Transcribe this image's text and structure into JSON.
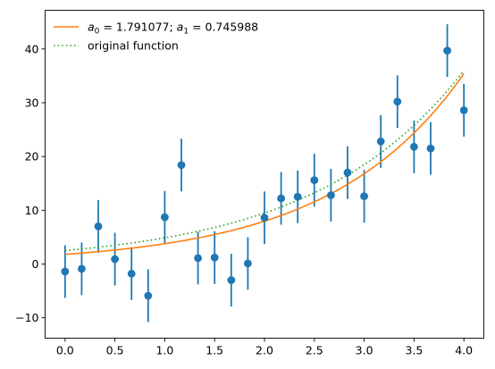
{
  "chart_data": {
    "type": "scatter",
    "title": "",
    "xlabel": "",
    "ylabel": "",
    "xlim": [
      -0.2,
      4.2
    ],
    "ylim": [
      -13.8,
      47.2
    ],
    "x_ticks": [
      0.0,
      0.5,
      1.0,
      1.5,
      2.0,
      2.5,
      3.0,
      3.5,
      4.0
    ],
    "x_tick_labels": [
      "0.0",
      "0.5",
      "1.0",
      "1.5",
      "2.0",
      "2.5",
      "3.0",
      "3.5",
      "4.0"
    ],
    "y_ticks": [
      -10,
      0,
      10,
      20,
      30,
      40
    ],
    "y_tick_labels": [
      "−10",
      "0",
      "10",
      "20",
      "30",
      "40"
    ],
    "grid": false,
    "legend_placement": "top-left",
    "series": [
      {
        "kind": "fit_line",
        "legend_text": "a₀ =  1.791077; a₁ =  0.745988",
        "color": "#ff7f0e",
        "a0": 1.791077,
        "a1": 0.745988,
        "x_range": [
          0.0,
          4.0
        ]
      },
      {
        "kind": "original_line",
        "name": "original function",
        "color": "#2ca02c",
        "style": "dotted",
        "x_range": [
          0.0,
          4.0
        ],
        "y_start": 2.5,
        "y_end": 36.0
      },
      {
        "kind": "errorbar_points",
        "color": "#1f77b4",
        "error": 4.9,
        "x": [
          0.0,
          0.1667,
          0.3333,
          0.5,
          0.6667,
          0.8333,
          1.0,
          1.1667,
          1.3333,
          1.5,
          1.6667,
          1.8333,
          2.0,
          2.1667,
          2.3333,
          2.5,
          2.6667,
          2.8333,
          3.0,
          3.1667,
          3.3333,
          3.5,
          3.6667,
          3.8333,
          4.0
        ],
        "y": [
          -1.4,
          -0.9,
          7.0,
          0.9,
          -1.8,
          -5.9,
          8.7,
          18.4,
          1.1,
          1.2,
          -3.0,
          0.1,
          8.6,
          12.2,
          12.5,
          15.6,
          12.8,
          17.0,
          12.6,
          22.8,
          30.2,
          21.8,
          21.5,
          39.7,
          28.6
        ]
      }
    ]
  }
}
